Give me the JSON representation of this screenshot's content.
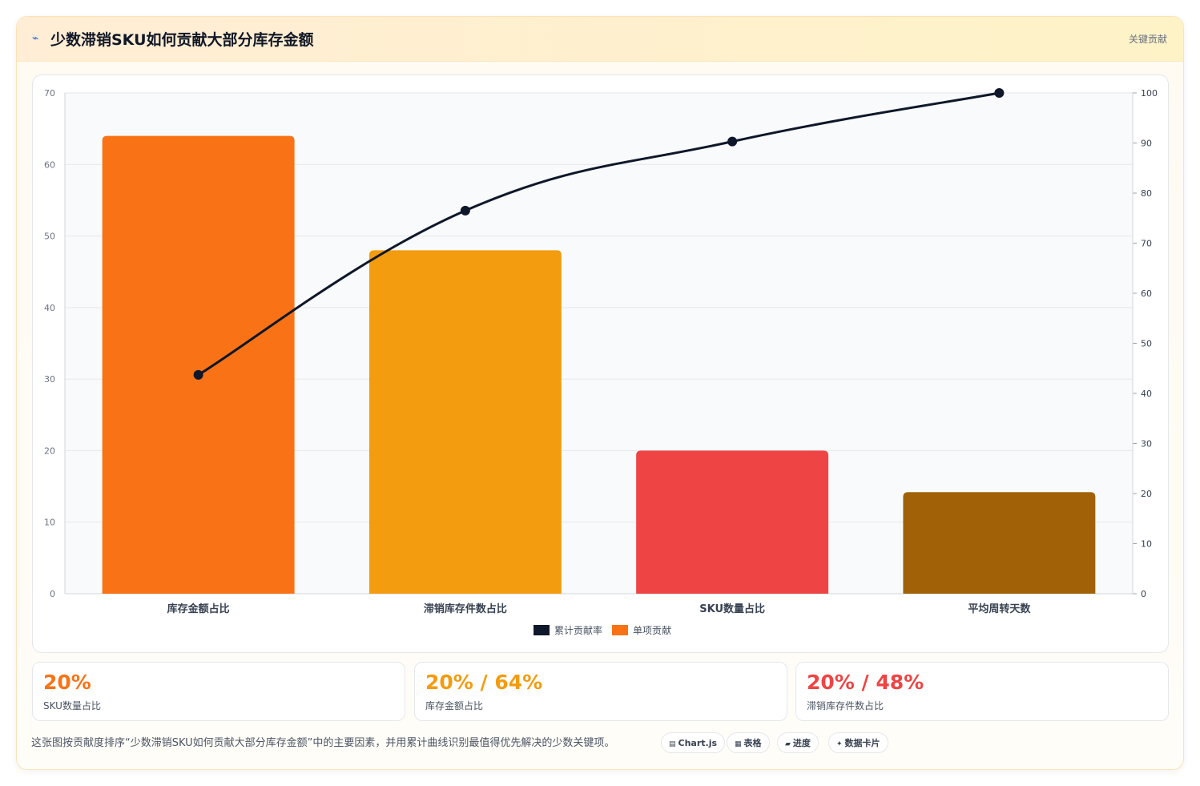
{
  "header": {
    "icon": "lightning-icon",
    "title": "少数滞销SKU如何贡献大部分库存金额",
    "badge": "关键贡献"
  },
  "chart_data": {
    "type": "bar",
    "categories": [
      "库存金额占比",
      "滞销库存件数占比",
      "SKU数量占比",
      "平均周转天数"
    ],
    "series": [
      {
        "name": "单项贡献",
        "type": "bar",
        "values": [
          64,
          48,
          20,
          14.2
        ],
        "colors": [
          "#f97316",
          "#f39c0f",
          "#ef4444",
          "#a16207"
        ]
      },
      {
        "name": "累计贡献率",
        "type": "line",
        "axis": "right",
        "values": [
          43.7,
          76.5,
          90.3,
          100
        ],
        "color": "#0f172a"
      }
    ],
    "y_left": {
      "ylim": [
        0,
        70
      ],
      "ticks": [
        "0",
        "10",
        "20",
        "30",
        "40",
        "50",
        "60",
        "70"
      ]
    },
    "y_right": {
      "ylim": [
        0,
        100
      ],
      "ticks": [
        "0",
        "10",
        "20",
        "30",
        "40",
        "50",
        "60",
        "70",
        "80",
        "90",
        "100"
      ]
    },
    "grid": true,
    "legend": {
      "placement": "bottom",
      "items": [
        {
          "label": "累计贡献率",
          "color": "#0f172a"
        },
        {
          "label": "单项贡献",
          "color": "#f97316"
        }
      ]
    }
  },
  "stats": [
    {
      "value": "20%",
      "label": "SKU数量占比",
      "color": "#f97316"
    },
    {
      "value": "20% / 64%",
      "label": "库存金额占比",
      "color": "#f39c0f"
    },
    {
      "value": "20% / 48%",
      "label": "滞销库存件数占比",
      "color": "#ef4444"
    }
  ],
  "note": "这张图按贡献度排序“少数滞销SKU如何贡献大部分库存金额”中的主要因素，并用累计曲线识别最值得优先解决的少数关键项。",
  "tags": [
    {
      "icon": "chart-icon",
      "glyph": "▤",
      "label": "Chart.js"
    },
    {
      "icon": "table-icon",
      "glyph": "▦",
      "label": "表格"
    },
    {
      "icon": "progress-icon",
      "glyph": "▰",
      "label": "进度"
    },
    {
      "icon": "card-icon",
      "glyph": "✦",
      "label": "数据卡片"
    }
  ]
}
